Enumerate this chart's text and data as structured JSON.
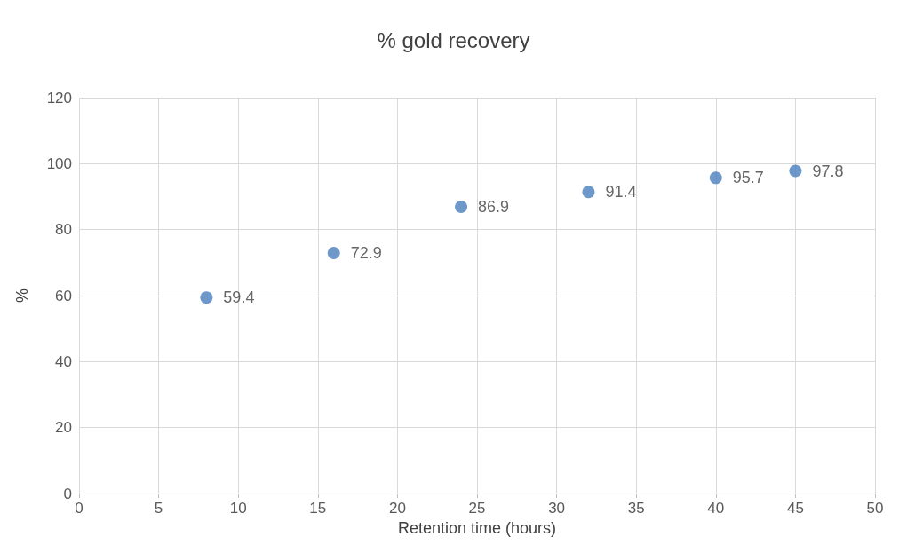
{
  "chart_data": {
    "type": "scatter",
    "title": "% gold recovery",
    "xlabel": "Retention time (hours)",
    "ylabel": "%",
    "x": [
      8,
      16,
      24,
      32,
      40,
      45
    ],
    "values": [
      59.4,
      72.9,
      86.9,
      91.4,
      95.7,
      97.8
    ],
    "color": "#4a7ebb",
    "xlim": [
      0,
      50
    ],
    "xticks": [
      0,
      5,
      10,
      15,
      20,
      25,
      30,
      35,
      40,
      45,
      50
    ],
    "ylim": [
      0,
      120
    ],
    "yticks": [
      0,
      20,
      40,
      60,
      80,
      100,
      120
    ],
    "grid": true,
    "marker": "circle",
    "data_labels": true
  }
}
